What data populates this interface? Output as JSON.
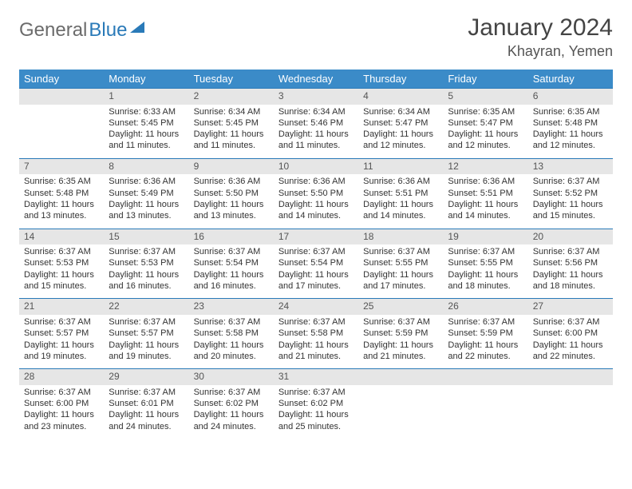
{
  "brand": {
    "part1": "General",
    "part2": "Blue"
  },
  "title": "January 2024",
  "location": "Khayran, Yemen",
  "colors": {
    "header_bg": "#3b8bc8",
    "header_text": "#ffffff",
    "dayhead_bg": "#e6e6e6",
    "dayhead_border": "#2a7ab8",
    "body_text": "#333333",
    "brand_gray": "#6b6b6b",
    "brand_blue": "#2a7ab8"
  },
  "weekdays": [
    "Sunday",
    "Monday",
    "Tuesday",
    "Wednesday",
    "Thursday",
    "Friday",
    "Saturday"
  ],
  "first_weekday_index": 1,
  "days": [
    {
      "n": 1,
      "sunrise": "6:33 AM",
      "sunset": "5:45 PM",
      "daylight": "11 hours and 11 minutes."
    },
    {
      "n": 2,
      "sunrise": "6:34 AM",
      "sunset": "5:45 PM",
      "daylight": "11 hours and 11 minutes."
    },
    {
      "n": 3,
      "sunrise": "6:34 AM",
      "sunset": "5:46 PM",
      "daylight": "11 hours and 11 minutes."
    },
    {
      "n": 4,
      "sunrise": "6:34 AM",
      "sunset": "5:47 PM",
      "daylight": "11 hours and 12 minutes."
    },
    {
      "n": 5,
      "sunrise": "6:35 AM",
      "sunset": "5:47 PM",
      "daylight": "11 hours and 12 minutes."
    },
    {
      "n": 6,
      "sunrise": "6:35 AM",
      "sunset": "5:48 PM",
      "daylight": "11 hours and 12 minutes."
    },
    {
      "n": 7,
      "sunrise": "6:35 AM",
      "sunset": "5:48 PM",
      "daylight": "11 hours and 13 minutes."
    },
    {
      "n": 8,
      "sunrise": "6:36 AM",
      "sunset": "5:49 PM",
      "daylight": "11 hours and 13 minutes."
    },
    {
      "n": 9,
      "sunrise": "6:36 AM",
      "sunset": "5:50 PM",
      "daylight": "11 hours and 13 minutes."
    },
    {
      "n": 10,
      "sunrise": "6:36 AM",
      "sunset": "5:50 PM",
      "daylight": "11 hours and 14 minutes."
    },
    {
      "n": 11,
      "sunrise": "6:36 AM",
      "sunset": "5:51 PM",
      "daylight": "11 hours and 14 minutes."
    },
    {
      "n": 12,
      "sunrise": "6:36 AM",
      "sunset": "5:51 PM",
      "daylight": "11 hours and 14 minutes."
    },
    {
      "n": 13,
      "sunrise": "6:37 AM",
      "sunset": "5:52 PM",
      "daylight": "11 hours and 15 minutes."
    },
    {
      "n": 14,
      "sunrise": "6:37 AM",
      "sunset": "5:53 PM",
      "daylight": "11 hours and 15 minutes."
    },
    {
      "n": 15,
      "sunrise": "6:37 AM",
      "sunset": "5:53 PM",
      "daylight": "11 hours and 16 minutes."
    },
    {
      "n": 16,
      "sunrise": "6:37 AM",
      "sunset": "5:54 PM",
      "daylight": "11 hours and 16 minutes."
    },
    {
      "n": 17,
      "sunrise": "6:37 AM",
      "sunset": "5:54 PM",
      "daylight": "11 hours and 17 minutes."
    },
    {
      "n": 18,
      "sunrise": "6:37 AM",
      "sunset": "5:55 PM",
      "daylight": "11 hours and 17 minutes."
    },
    {
      "n": 19,
      "sunrise": "6:37 AM",
      "sunset": "5:55 PM",
      "daylight": "11 hours and 18 minutes."
    },
    {
      "n": 20,
      "sunrise": "6:37 AM",
      "sunset": "5:56 PM",
      "daylight": "11 hours and 18 minutes."
    },
    {
      "n": 21,
      "sunrise": "6:37 AM",
      "sunset": "5:57 PM",
      "daylight": "11 hours and 19 minutes."
    },
    {
      "n": 22,
      "sunrise": "6:37 AM",
      "sunset": "5:57 PM",
      "daylight": "11 hours and 19 minutes."
    },
    {
      "n": 23,
      "sunrise": "6:37 AM",
      "sunset": "5:58 PM",
      "daylight": "11 hours and 20 minutes."
    },
    {
      "n": 24,
      "sunrise": "6:37 AM",
      "sunset": "5:58 PM",
      "daylight": "11 hours and 21 minutes."
    },
    {
      "n": 25,
      "sunrise": "6:37 AM",
      "sunset": "5:59 PM",
      "daylight": "11 hours and 21 minutes."
    },
    {
      "n": 26,
      "sunrise": "6:37 AM",
      "sunset": "5:59 PM",
      "daylight": "11 hours and 22 minutes."
    },
    {
      "n": 27,
      "sunrise": "6:37 AM",
      "sunset": "6:00 PM",
      "daylight": "11 hours and 22 minutes."
    },
    {
      "n": 28,
      "sunrise": "6:37 AM",
      "sunset": "6:00 PM",
      "daylight": "11 hours and 23 minutes."
    },
    {
      "n": 29,
      "sunrise": "6:37 AM",
      "sunset": "6:01 PM",
      "daylight": "11 hours and 24 minutes."
    },
    {
      "n": 30,
      "sunrise": "6:37 AM",
      "sunset": "6:02 PM",
      "daylight": "11 hours and 24 minutes."
    },
    {
      "n": 31,
      "sunrise": "6:37 AM",
      "sunset": "6:02 PM",
      "daylight": "11 hours and 25 minutes."
    }
  ],
  "labels": {
    "sunrise": "Sunrise:",
    "sunset": "Sunset:",
    "daylight": "Daylight:"
  }
}
